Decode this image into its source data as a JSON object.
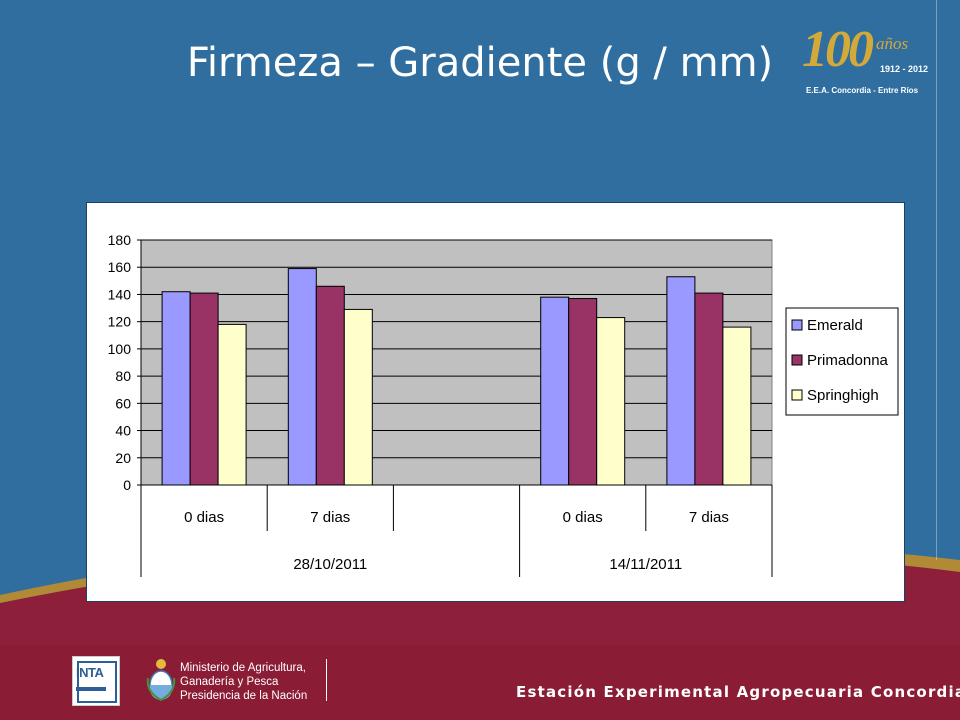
{
  "slide": {
    "title": "Firmeza – Gradiente (g / mm)",
    "footer": "Estación Experimental Agropecuaria Concordia",
    "logo": {
      "number": "100",
      "suffix": "años",
      "years": "1912 - 2012",
      "station": "E.E.A. Concordia - Entre Ríos"
    },
    "inta_logo": "INTA",
    "ministry_lines": [
      "Ministerio de Agricultura,",
      "Ganadería y Pesca",
      "Presidencia de la Nación"
    ]
  },
  "colors": {
    "background": "#2f6e9f",
    "footer_band": "#8e1f3a",
    "plot_area": "#c0c0c0",
    "emerald": "#9999ff",
    "primadonna": "#993366",
    "springhigh": "#ffffcc"
  },
  "chart_data": {
    "type": "bar",
    "title": "",
    "xlabel": "",
    "ylabel": "",
    "ylim": [
      0,
      180
    ],
    "yticks": [
      0,
      20,
      40,
      60,
      80,
      100,
      120,
      140,
      160,
      180
    ],
    "grid": true,
    "legend_position": "right",
    "categories": [
      "0 dias",
      "7 dias",
      "",
      "0 dias",
      "7 dias"
    ],
    "groups": [
      {
        "label": "28/10/2011"
      },
      {
        "label": "14/11/2011"
      }
    ],
    "series": [
      {
        "name": "Emerald",
        "color": "#9999ff",
        "values": [
          142,
          159,
          null,
          138,
          153
        ]
      },
      {
        "name": "Primadonna",
        "color": "#993366",
        "values": [
          141,
          146,
          null,
          137,
          141
        ]
      },
      {
        "name": "Springhigh",
        "color": "#ffffcc",
        "values": [
          118,
          129,
          null,
          123,
          116
        ]
      }
    ]
  }
}
